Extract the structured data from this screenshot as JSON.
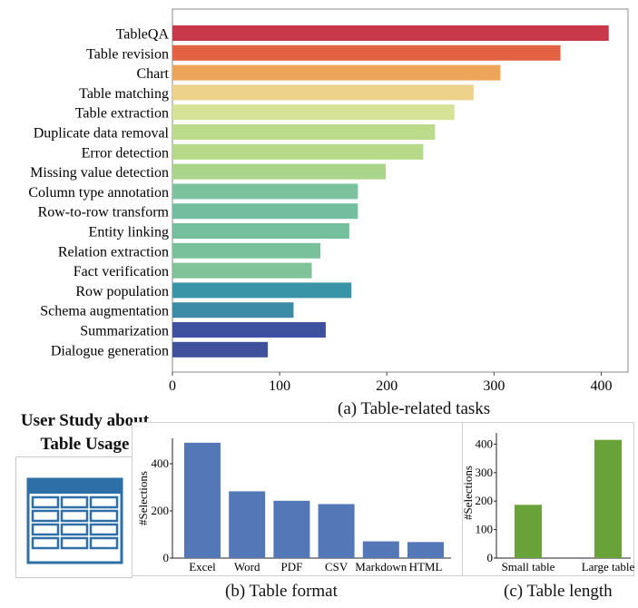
{
  "study_title_lines": [
    "User Study about",
    "Table Usage"
  ],
  "captions": {
    "tasks": "(a) Table-related tasks",
    "format": "(b) Table format",
    "length": "(c) Table length"
  },
  "icons": {
    "study": "table-grid-icon"
  },
  "colors": {
    "format_bars": "#5477b8",
    "length_bars": "#6aa23a",
    "icon_blue": "#2e6fa8"
  },
  "chart_data": [
    {
      "id": "tasks",
      "type": "bar",
      "orientation": "horizontal",
      "categories": [
        "TableQA",
        "Table revision",
        "Chart",
        "Table matching",
        "Table extraction",
        "Duplicate data removal",
        "Error detection",
        "Missing value detection",
        "Column type annotation",
        "Row-to-row transform",
        "Entity linking",
        "Relation extraction",
        "Fact verification",
        "Row population",
        "Schema augmentation",
        "Summarization",
        "Dialogue generation"
      ],
      "values": [
        407,
        362,
        306,
        281,
        263,
        245,
        234,
        199,
        173,
        173,
        165,
        138,
        130,
        167,
        113,
        143,
        89
      ],
      "colors": [
        "#c8384a",
        "#e36244",
        "#eda55a",
        "#ecd28a",
        "#d6e396",
        "#bcdb8b",
        "#b7d98a",
        "#a9d48a",
        "#7cc39d",
        "#72be9f",
        "#74bf9e",
        "#79c19b",
        "#80c399",
        "#3a94a8",
        "#3c8ba7",
        "#3e519f",
        "#3e519a"
      ],
      "xlim": [
        0,
        425
      ],
      "xticks": [
        0,
        100,
        200,
        300,
        400
      ],
      "grid": false
    },
    {
      "id": "format",
      "type": "bar",
      "categories": [
        "Excel",
        "Word",
        "PDF",
        "CSV",
        "Markdown",
        "HTML"
      ],
      "values": [
        489,
        283,
        243,
        229,
        71,
        68
      ],
      "ylabel": "#Selections",
      "ylim": [
        0,
        500
      ],
      "yticks": [
        0,
        200,
        400
      ],
      "grid": false
    },
    {
      "id": "length",
      "type": "bar",
      "categories": [
        "Small table",
        "Large table"
      ],
      "values": [
        187,
        415
      ],
      "ylabel": "#Selections",
      "ylim": [
        0,
        430
      ],
      "yticks": [
        0,
        100,
        200,
        300,
        400
      ],
      "grid": false
    }
  ]
}
